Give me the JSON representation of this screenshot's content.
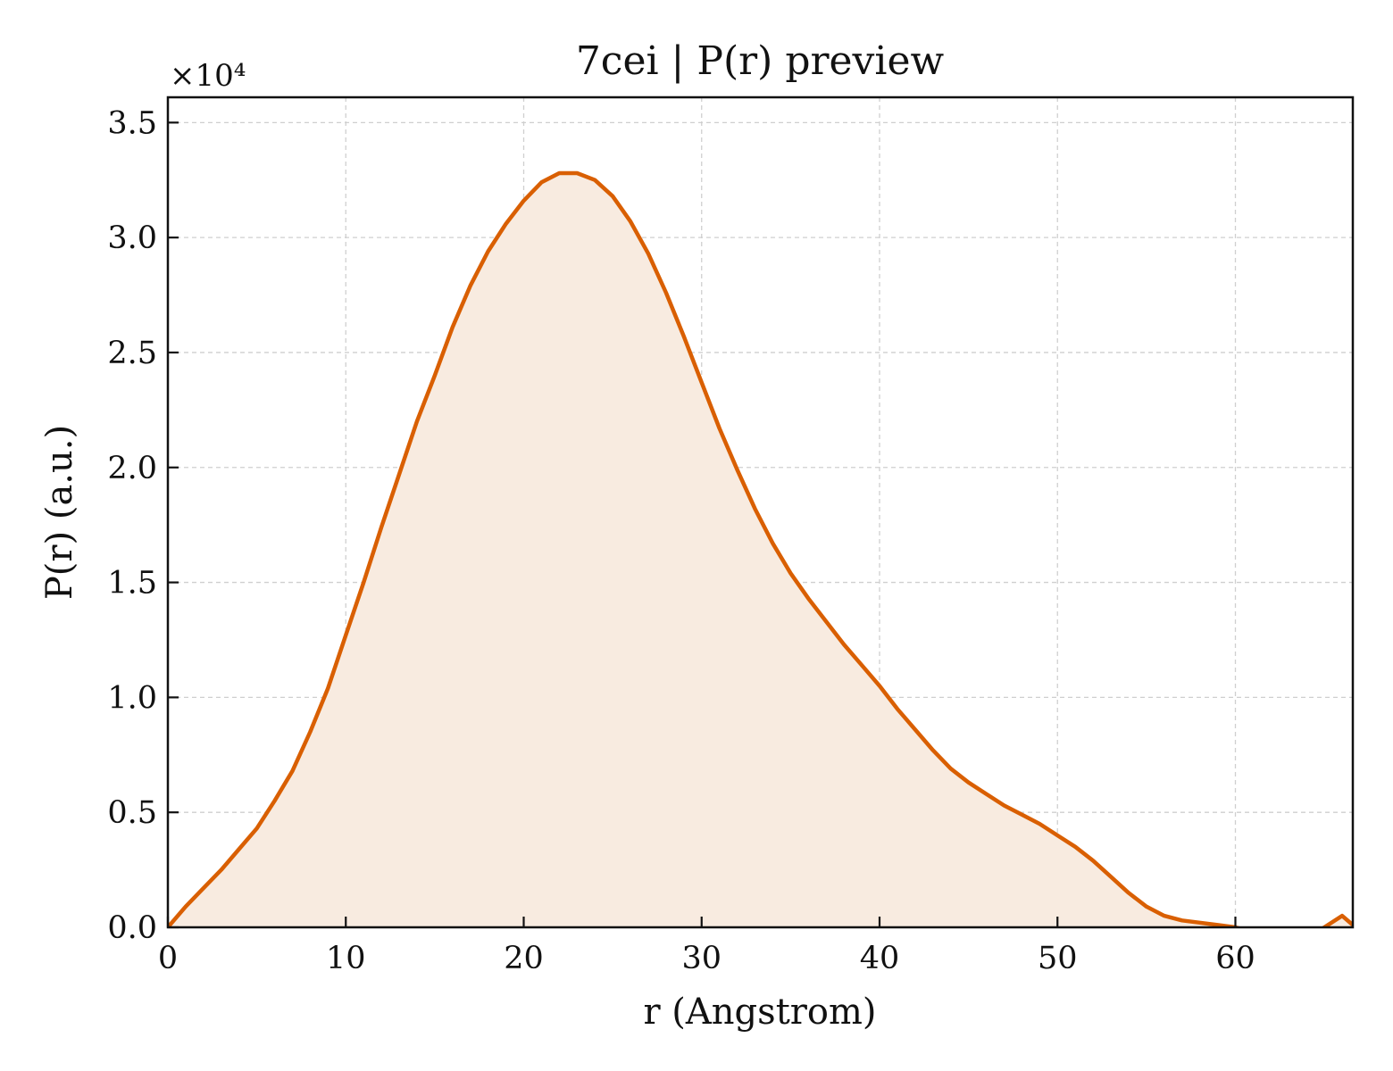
{
  "chart_data": {
    "type": "area",
    "title": "7cei | P(r) preview",
    "xlabel": "r (Angstrom)",
    "ylabel": "P(r) (a.u.)",
    "y_scale_label": "×10⁴",
    "y_scale_factor": 10000,
    "xlim": [
      0,
      66.6
    ],
    "ylim": [
      0,
      3.61
    ],
    "xticks": [
      0,
      10,
      20,
      30,
      40,
      50,
      60
    ],
    "xtick_labels": [
      "0",
      "10",
      "20",
      "30",
      "40",
      "50",
      "60"
    ],
    "yticks": [
      0,
      0.5,
      1.0,
      1.5,
      2.0,
      2.5,
      3.0,
      3.5
    ],
    "ytick_labels": [
      "0.0",
      "0.5",
      "1.0",
      "1.5",
      "2.0",
      "2.5",
      "3.0",
      "3.5"
    ],
    "grid": true,
    "line_color": "#d95f02",
    "fill_color": "#f8ebe0",
    "series": [
      {
        "x": [
          0,
          1,
          2,
          3,
          4,
          5,
          6,
          7,
          8,
          9,
          10,
          11,
          12,
          13,
          14,
          15,
          16,
          17,
          18,
          19,
          20,
          21,
          22,
          23,
          24,
          25,
          26,
          27,
          28,
          29,
          30,
          31,
          32,
          33,
          34,
          35,
          36,
          37,
          38,
          39,
          40,
          41,
          42,
          43,
          44,
          45,
          46,
          47,
          48,
          49,
          50,
          51,
          52,
          53,
          54,
          55,
          56,
          57,
          58,
          59,
          60,
          61,
          62,
          63,
          64,
          65,
          66,
          66.6
        ],
        "y": [
          0.0,
          0.09,
          0.17,
          0.25,
          0.34,
          0.43,
          0.55,
          0.68,
          0.85,
          1.04,
          1.27,
          1.5,
          1.74,
          1.97,
          2.2,
          2.4,
          2.61,
          2.79,
          2.94,
          3.06,
          3.16,
          3.24,
          3.28,
          3.28,
          3.25,
          3.18,
          3.07,
          2.93,
          2.76,
          2.57,
          2.37,
          2.17,
          1.99,
          1.82,
          1.67,
          1.54,
          1.43,
          1.33,
          1.23,
          1.14,
          1.05,
          0.95,
          0.86,
          0.77,
          0.69,
          0.63,
          0.58,
          0.53,
          0.49,
          0.45,
          0.4,
          0.35,
          0.29,
          0.22,
          0.15,
          0.09,
          0.05,
          0.03,
          0.02,
          0.01,
          0.0,
          -0.02,
          -0.05,
          -0.07,
          -0.05,
          0.0,
          0.05,
          0.01
        ]
      }
    ]
  }
}
